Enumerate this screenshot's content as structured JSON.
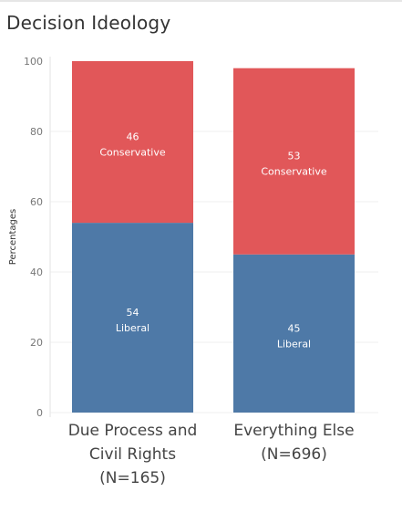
{
  "title": "Decision Ideology",
  "chart_data": {
    "type": "bar",
    "stacked": true,
    "categories": [
      [
        "Due Process and",
        "Civil Rights",
        "(N=165)"
      ],
      [
        "Everything Else",
        "(N=696)"
      ]
    ],
    "series": [
      {
        "name": "Liberal",
        "values": [
          54,
          45
        ],
        "color": "#4e79a7"
      },
      {
        "name": "Conservative",
        "values": [
          46,
          53
        ],
        "color": "#e15759"
      }
    ],
    "ylabel": "Percentages",
    "ylim": [
      0,
      100
    ],
    "yticks": [
      0,
      20,
      40,
      60,
      80,
      100
    ],
    "grid": true
  }
}
